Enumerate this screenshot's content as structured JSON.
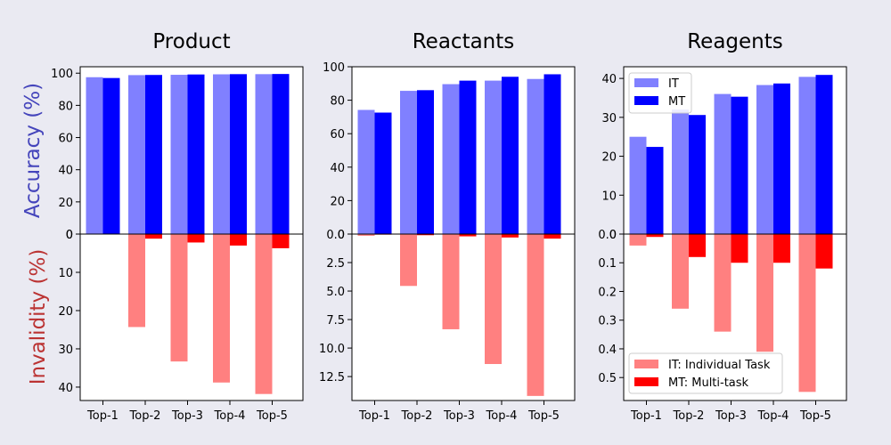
{
  "figure": {
    "ylabel_top": "Accuracy (%)",
    "ylabel_bottom": "Invalidity (%)",
    "ylabel_top_color": "#4444bb",
    "ylabel_bottom_color": "#bb3333",
    "colors": {
      "IT_accuracy": "#8080ff",
      "MT_accuracy": "#0000ff",
      "IT_invalidity": "#ff8080",
      "MT_invalidity": "#ff0000"
    },
    "legend_top": [
      "IT",
      "MT"
    ],
    "legend_bottom": [
      "IT: Individual Task",
      "MT: Multi-task"
    ]
  },
  "chart_data": [
    {
      "type": "bar",
      "title": "Product",
      "categories": [
        "Top-1",
        "Top-2",
        "Top-3",
        "Top-4",
        "Top-5"
      ],
      "accuracy": {
        "ylim": [
          0,
          104
        ],
        "ticks": [
          "0",
          "20",
          "40",
          "60",
          "80",
          "100"
        ],
        "tick_values": [
          0,
          20,
          40,
          60,
          80,
          100
        ],
        "series": [
          {
            "name": "IT",
            "values": [
              97.5,
              98.8,
              99.0,
              99.3,
              99.4
            ]
          },
          {
            "name": "MT",
            "values": [
              97.0,
              98.9,
              99.2,
              99.4,
              99.5
            ]
          }
        ]
      },
      "invalidity": {
        "ylim": [
          0,
          43.5
        ],
        "ticks": [
          "0",
          "10",
          "20",
          "30",
          "40"
        ],
        "tick_values": [
          0,
          10,
          20,
          30,
          40
        ],
        "series": [
          {
            "name": "IT",
            "values": [
              0,
              24.3,
              33.3,
              38.8,
              41.8
            ]
          },
          {
            "name": "MT",
            "values": [
              0,
              1.2,
              2.2,
              3.0,
              3.7
            ]
          }
        ]
      }
    },
    {
      "type": "bar",
      "title": "Reactants",
      "categories": [
        "Top-1",
        "Top-2",
        "Top-3",
        "Top-4",
        "Top-5"
      ],
      "accuracy": {
        "ylim": [
          0,
          100
        ],
        "ticks": [
          "0",
          "20",
          "40",
          "60",
          "80",
          "100"
        ],
        "tick_values": [
          0,
          20,
          40,
          60,
          80,
          100
        ],
        "series": [
          {
            "name": "IT",
            "values": [
              74.2,
              85.6,
              89.6,
              91.7,
              92.7
            ]
          },
          {
            "name": "MT",
            "values": [
              72.6,
              86.0,
              91.7,
              94.0,
              95.5
            ]
          }
        ]
      },
      "invalidity": {
        "ylim": [
          0,
          14.6
        ],
        "ticks": [
          "0.0",
          "2.5",
          "5.0",
          "7.5",
          "10.0",
          "12.5"
        ],
        "tick_values": [
          0,
          2.5,
          5,
          7.5,
          10,
          12.5
        ],
        "series": [
          {
            "name": "IT",
            "values": [
              0.15,
              4.55,
              8.35,
              11.4,
              14.2
            ]
          },
          {
            "name": "MT",
            "values": [
              0.05,
              0.1,
              0.2,
              0.3,
              0.4
            ]
          }
        ]
      }
    },
    {
      "type": "bar",
      "title": "Reagents",
      "categories": [
        "Top-1",
        "Top-2",
        "Top-3",
        "Top-4",
        "Top-5"
      ],
      "legend": "top-left",
      "accuracy": {
        "ylim": [
          0,
          43
        ],
        "ticks": [
          "0",
          "10",
          "20",
          "30",
          "40"
        ],
        "tick_values": [
          0,
          10,
          20,
          30,
          40
        ],
        "series": [
          {
            "name": "IT",
            "values": [
              25.0,
              32.0,
              36.0,
              38.3,
              40.4
            ]
          },
          {
            "name": "MT",
            "values": [
              22.4,
              30.6,
              35.3,
              38.7,
              40.9
            ]
          }
        ]
      },
      "invalidity": {
        "ylim": [
          0,
          0.58
        ],
        "ticks": [
          "0.0",
          "0.1",
          "0.2",
          "0.3",
          "0.4",
          "0.5"
        ],
        "tick_values": [
          0,
          0.1,
          0.2,
          0.3,
          0.4,
          0.5
        ],
        "series": [
          {
            "name": "IT",
            "values": [
              0.04,
              0.26,
              0.34,
              0.41,
              0.55
            ]
          },
          {
            "name": "MT",
            "values": [
              0.01,
              0.08,
              0.1,
              0.1,
              0.12
            ]
          }
        ]
      }
    }
  ]
}
